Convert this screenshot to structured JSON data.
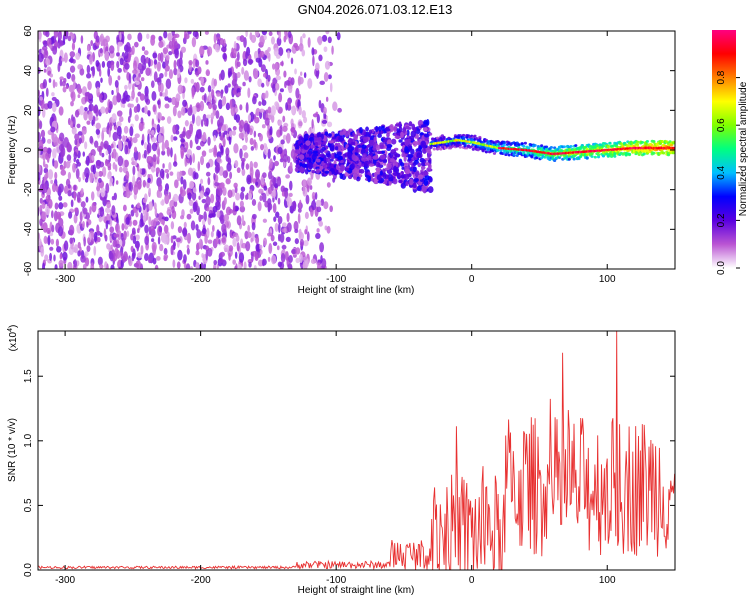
{
  "title": "GN04.2026.071.03.12.E13",
  "colors": {
    "snr_line": "#e83030",
    "frame": "#000000",
    "background": "#ffffff"
  },
  "chart_data": [
    {
      "type": "heatmap",
      "title": "GN04.2026.071.03.12.E13",
      "xlabel": "Height of straight line (km)",
      "ylabel": "Frequency (Hz)",
      "xlim": [
        -320,
        150
      ],
      "ylim": [
        -60,
        60
      ],
      "xticks": [
        -300,
        -200,
        -100,
        0,
        100
      ],
      "yticks": [
        -60,
        -40,
        -20,
        0,
        20,
        40,
        60
      ],
      "colorbar": {
        "label": "Normalized spectral amplitude",
        "range": [
          0,
          1
        ],
        "ticks": [
          "0.0",
          "0.2",
          "0.4",
          "0.6",
          "0.8"
        ],
        "colormap": [
          "#ffffff",
          "#ba55d3",
          "#5a00e0",
          "#0000ff",
          "#00bfff",
          "#00ff80",
          "#80ff00",
          "#ffff00",
          "#ff8000",
          "#ff0000",
          "#ff0080"
        ]
      },
      "regions": [
        {
          "x_range": [
            -320,
            -130
          ],
          "freq_range": [
            -60,
            60
          ],
          "amplitude": "low (0.05-0.15), broadband noise"
        },
        {
          "x_range": [
            -130,
            -100
          ],
          "freq_range": [
            -60,
            60
          ],
          "amplitude": "faint noise fading out"
        },
        {
          "x_range": [
            -130,
            -30
          ],
          "freq_range": [
            -20,
            15
          ],
          "amplitude": "0.1-0.3, noisy signal band"
        },
        {
          "x_range": [
            -30,
            150
          ],
          "freq_range": [
            -4,
            6
          ],
          "amplitude": "0.5-1.0, coherent narrow band"
        }
      ],
      "peak_frequency_track": [
        {
          "x": -30,
          "f": 3
        },
        {
          "x": -10,
          "f": 5
        },
        {
          "x": 0,
          "f": 4
        },
        {
          "x": 20,
          "f": 1
        },
        {
          "x": 40,
          "f": 0
        },
        {
          "x": 60,
          "f": -2
        },
        {
          "x": 80,
          "f": -1
        },
        {
          "x": 100,
          "f": 0
        },
        {
          "x": 120,
          "f": 1
        },
        {
          "x": 150,
          "f": 1
        }
      ]
    },
    {
      "type": "line",
      "xlabel": "Height of straight line (km)",
      "ylabel": "SNR (10 * v/v)",
      "y_multiplier_label": "(x10",
      "y_multiplier_exponent": "4",
      "y_multiplier_close": ")",
      "xlim": [
        -320,
        150
      ],
      "ylim": [
        0,
        1.85
      ],
      "xticks": [
        -300,
        -200,
        -100,
        0,
        100
      ],
      "yticks": [
        "0.0",
        "0.5",
        "1.0",
        "1.5"
      ],
      "series": [
        {
          "name": "SNR",
          "color": "#e83030",
          "segments": [
            {
              "x_range": [
                -320,
                -130
              ],
              "mean": 0.02,
              "spread": 0.01
            },
            {
              "x_range": [
                -130,
                -60
              ],
              "mean": 0.04,
              "spread": 0.03
            },
            {
              "x_range": [
                -60,
                -30
              ],
              "mean": 0.12,
              "spread": 0.12
            },
            {
              "x_range": [
                -30,
                25
              ],
              "mean": 0.3,
              "spread": 0.45
            },
            {
              "x_range": [
                25,
                150
              ],
              "mean": 0.65,
              "spread": 0.55
            }
          ],
          "peak": {
            "x": 107,
            "y": 1.85
          }
        }
      ]
    }
  ]
}
